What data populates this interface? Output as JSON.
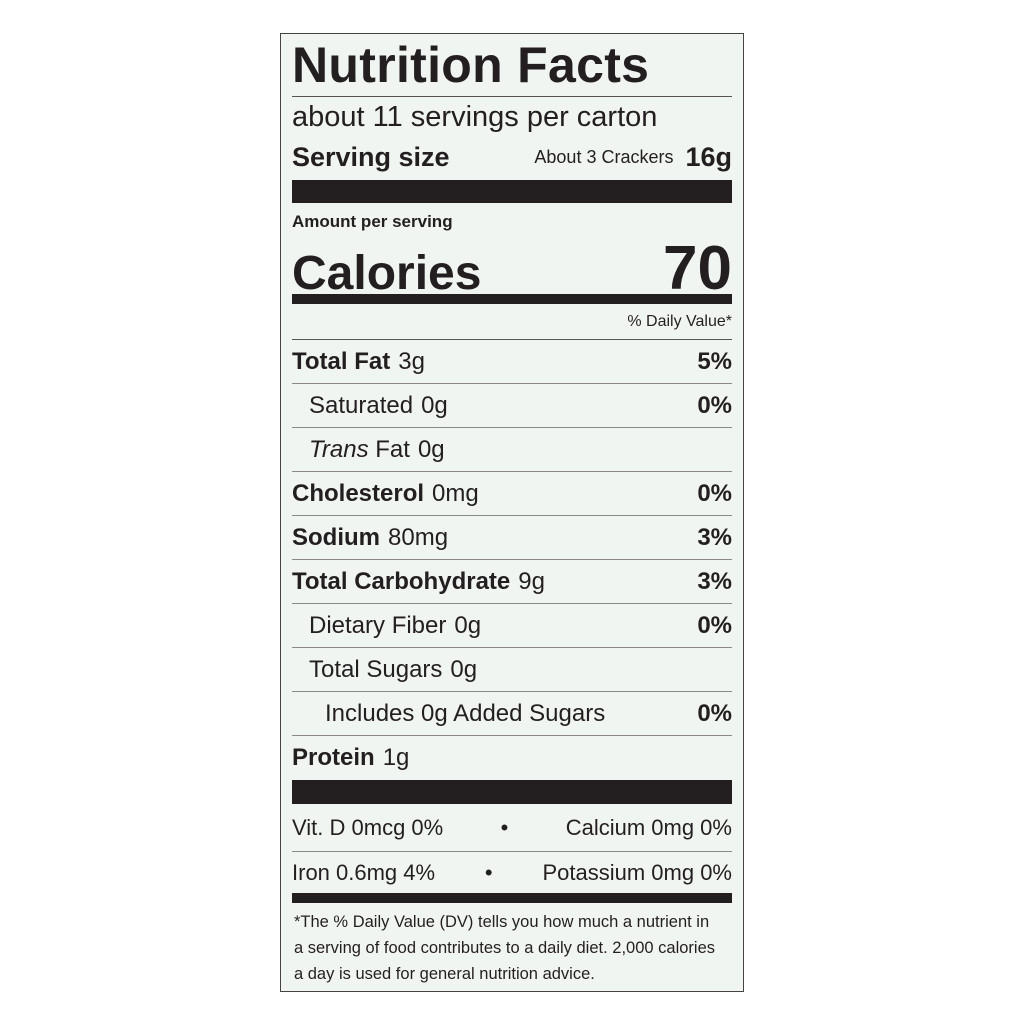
{
  "title": "Nutrition Facts",
  "servings": "about 11 servings per carton",
  "serving_size": {
    "label": "Serving size",
    "description": "About 3 Crackers",
    "amount": "16g"
  },
  "amount_per_serving": "Amount per serving",
  "calories": {
    "label": "Calories",
    "value": "70"
  },
  "dv_header": "% Daily Value*",
  "nutrients": [
    {
      "name": "Total Fat",
      "amount": "3g",
      "dv": "5%"
    },
    {
      "name": "Saturated",
      "amount": "0g",
      "dv": "0%"
    },
    {
      "name_italic": "Trans",
      "name": "Fat",
      "amount": "0g"
    },
    {
      "name": "Cholesterol",
      "amount": "0mg",
      "dv": "0%"
    },
    {
      "name": "Sodium",
      "amount": "80mg",
      "dv": "3%"
    },
    {
      "name": "Total Carbohydrate",
      "amount": "9g",
      "dv": "3%"
    },
    {
      "name": "Dietary Fiber",
      "amount": "0g",
      "dv": "0%"
    },
    {
      "name": "Total Sugars",
      "amount": "0g"
    },
    {
      "name": "Includes 0g Added Sugars",
      "dv": "0%"
    },
    {
      "name": "Protein",
      "amount": "1g"
    }
  ],
  "vitamins": [
    [
      "Vit. D 0mcg 0%",
      "Calcium 0mg 0%"
    ],
    [
      "Iron 0.6mg 4%",
      "Potassium 0mg 0%"
    ]
  ],
  "footnote": "*The % Daily Value (DV) tells you how much a nutrient in a serving of food contributes to a daily diet. 2,000 calories a day is used for general nutrition advice."
}
